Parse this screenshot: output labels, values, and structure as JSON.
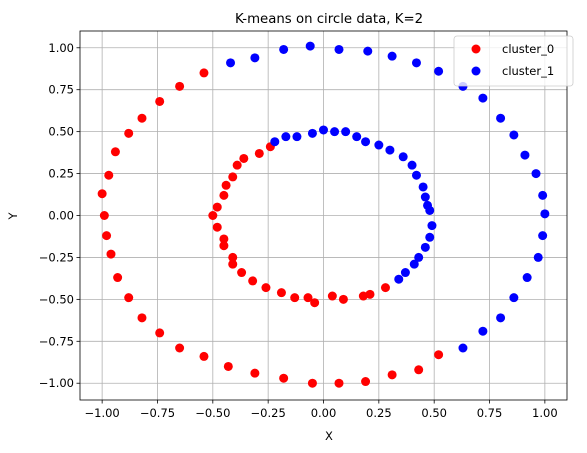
{
  "chart_data": {
    "type": "scatter",
    "title": "K-means on circle data, K=2",
    "xlabel": "X",
    "ylabel": "Y",
    "xlim": [
      -1.1,
      1.1
    ],
    "ylim": [
      -1.1,
      1.1
    ],
    "xticks": [
      -1.0,
      -0.75,
      -0.5,
      -0.25,
      0.0,
      0.25,
      0.5,
      0.75,
      1.0
    ],
    "xtick_labels": [
      "−1.00",
      "−0.75",
      "−0.50",
      "−0.25",
      "0.00",
      "0.25",
      "0.50",
      "0.75",
      "1.00"
    ],
    "yticks": [
      -1.0,
      -0.75,
      -0.5,
      -0.25,
      0.0,
      0.25,
      0.5,
      0.75,
      1.0
    ],
    "ytick_labels": [
      "−1.00",
      "−0.75",
      "−0.50",
      "−0.25",
      "0.00",
      "0.25",
      "0.50",
      "0.75",
      "1.00"
    ],
    "grid": true,
    "legend_position": "top-right",
    "series": [
      {
        "name": "cluster_0",
        "color": "#ff0000",
        "points": [
          [
            -0.54,
            0.85
          ],
          [
            -0.65,
            0.77
          ],
          [
            -0.74,
            0.68
          ],
          [
            -0.82,
            0.58
          ],
          [
            -0.88,
            0.49
          ],
          [
            -0.94,
            0.38
          ],
          [
            -0.97,
            0.24
          ],
          [
            -1.0,
            0.13
          ],
          [
            -0.99,
            0.0
          ],
          [
            -0.98,
            -0.12
          ],
          [
            -0.96,
            -0.23
          ],
          [
            -0.93,
            -0.37
          ],
          [
            -0.88,
            -0.49
          ],
          [
            -0.82,
            -0.61
          ],
          [
            -0.74,
            -0.7
          ],
          [
            -0.65,
            -0.79
          ],
          [
            -0.54,
            -0.84
          ],
          [
            -0.43,
            -0.9
          ],
          [
            -0.31,
            -0.94
          ],
          [
            -0.18,
            -0.97
          ],
          [
            -0.05,
            -1.0
          ],
          [
            0.07,
            -1.0
          ],
          [
            0.19,
            -0.99
          ],
          [
            0.31,
            -0.95
          ],
          [
            0.43,
            -0.92
          ],
          [
            0.52,
            -0.83
          ],
          [
            -0.24,
            0.41
          ],
          [
            -0.29,
            0.37
          ],
          [
            -0.36,
            0.34
          ],
          [
            -0.39,
            0.3
          ],
          [
            -0.41,
            0.23
          ],
          [
            -0.44,
            0.18
          ],
          [
            -0.45,
            0.12
          ],
          [
            -0.48,
            0.05
          ],
          [
            -0.5,
            0.0
          ],
          [
            -0.48,
            -0.07
          ],
          [
            -0.45,
            -0.14
          ],
          [
            -0.45,
            -0.18
          ],
          [
            -0.41,
            -0.25
          ],
          [
            -0.41,
            -0.29
          ],
          [
            -0.37,
            -0.34
          ],
          [
            -0.32,
            -0.39
          ],
          [
            -0.26,
            -0.43
          ],
          [
            -0.19,
            -0.46
          ],
          [
            -0.13,
            -0.49
          ],
          [
            -0.07,
            -0.49
          ],
          [
            -0.04,
            -0.52
          ],
          [
            0.04,
            -0.48
          ],
          [
            0.09,
            -0.5
          ],
          [
            0.18,
            -0.48
          ],
          [
            0.21,
            -0.47
          ],
          [
            0.28,
            -0.43
          ]
        ]
      },
      {
        "name": "cluster_1",
        "color": "#0000ff",
        "points": [
          [
            -0.42,
            0.91
          ],
          [
            -0.31,
            0.94
          ],
          [
            -0.18,
            0.99
          ],
          [
            -0.06,
            1.01
          ],
          [
            0.07,
            0.99
          ],
          [
            0.2,
            0.98
          ],
          [
            0.31,
            0.95
          ],
          [
            0.42,
            0.91
          ],
          [
            0.52,
            0.86
          ],
          [
            0.63,
            0.77
          ],
          [
            0.72,
            0.7
          ],
          [
            0.8,
            0.58
          ],
          [
            0.86,
            0.48
          ],
          [
            0.91,
            0.36
          ],
          [
            0.96,
            0.25
          ],
          [
            0.99,
            0.12
          ],
          [
            1.0,
            0.01
          ],
          [
            0.99,
            -0.12
          ],
          [
            0.97,
            -0.25
          ],
          [
            0.92,
            -0.37
          ],
          [
            0.86,
            -0.49
          ],
          [
            0.8,
            -0.61
          ],
          [
            0.72,
            -0.69
          ],
          [
            0.63,
            -0.79
          ],
          [
            0.0,
            0.51
          ],
          [
            -0.05,
            0.49
          ],
          [
            -0.12,
            0.47
          ],
          [
            -0.17,
            0.47
          ],
          [
            -0.22,
            0.44
          ],
          [
            0.05,
            0.5
          ],
          [
            0.1,
            0.5
          ],
          [
            0.15,
            0.47
          ],
          [
            0.19,
            0.44
          ],
          [
            0.25,
            0.42
          ],
          [
            0.3,
            0.39
          ],
          [
            0.36,
            0.35
          ],
          [
            0.4,
            0.3
          ],
          [
            0.42,
            0.24
          ],
          [
            0.45,
            0.17
          ],
          [
            0.46,
            0.11
          ],
          [
            0.47,
            0.06
          ],
          [
            0.48,
            0.03
          ],
          [
            0.49,
            -0.06
          ],
          [
            0.48,
            -0.13
          ],
          [
            0.46,
            -0.19
          ],
          [
            0.43,
            -0.25
          ],
          [
            0.41,
            -0.29
          ],
          [
            0.37,
            -0.34
          ],
          [
            0.34,
            -0.38
          ]
        ]
      }
    ]
  }
}
